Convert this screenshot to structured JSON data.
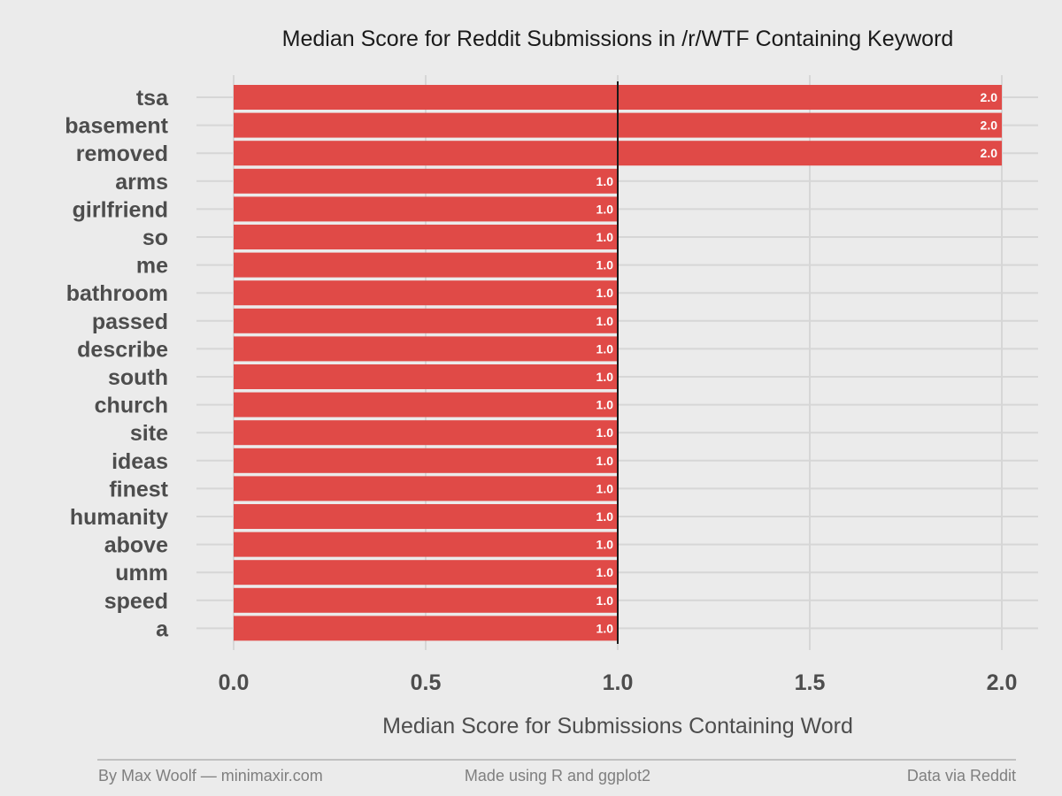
{
  "chart_data": {
    "type": "bar",
    "orientation": "horizontal",
    "title": "Median Score for Reddit Submissions in /r/WTF Containing Keyword",
    "xlabel": "Median Score for Submissions Containing Word",
    "ylabel": "",
    "categories": [
      "tsa",
      "basement",
      "removed",
      "arms",
      "girlfriend",
      "so",
      "me",
      "bathroom",
      "passed",
      "describe",
      "south",
      "church",
      "site",
      "ideas",
      "finest",
      "humanity",
      "above",
      "umm",
      "speed",
      "a"
    ],
    "values": [
      2.0,
      2.0,
      2.0,
      1.0,
      1.0,
      1.0,
      1.0,
      1.0,
      1.0,
      1.0,
      1.0,
      1.0,
      1.0,
      1.0,
      1.0,
      1.0,
      1.0,
      1.0,
      1.0,
      1.0
    ],
    "value_labels": [
      "2.0",
      "2.0",
      "2.0",
      "1.0",
      "1.0",
      "1.0",
      "1.0",
      "1.0",
      "1.0",
      "1.0",
      "1.0",
      "1.0",
      "1.0",
      "1.0",
      "1.0",
      "1.0",
      "1.0",
      "1.0",
      "1.0",
      "1.0"
    ],
    "xlim": [
      0,
      2
    ],
    "xticks": [
      0,
      0.5,
      1,
      1.5,
      2
    ],
    "xtick_labels": [
      "0.0",
      "0.5",
      "1.0",
      "1.5",
      "2.0"
    ],
    "reference_line_x": 1.0,
    "grid": true,
    "legend": "none",
    "bar_color": "#e04a47",
    "reference_line_color": "#1a1a1a",
    "grid_color": "#d6d6d6"
  },
  "footer": {
    "left": "By Max Woolf — minimaxir.com",
    "center": "Made using R and ggplot2",
    "right": "Data via Reddit"
  }
}
